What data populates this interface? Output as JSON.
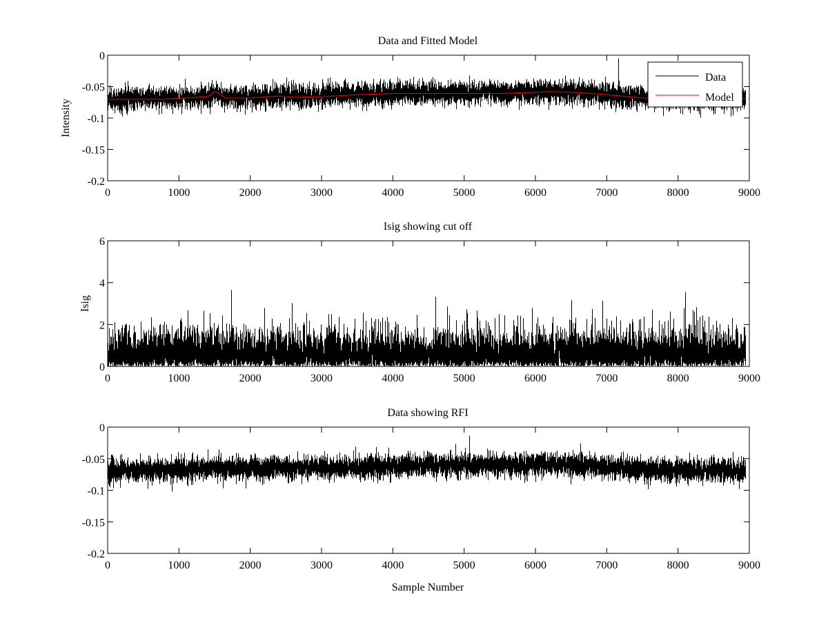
{
  "colors": {
    "data": "#000000",
    "model": "#ff0000",
    "background": "#ffffff"
  },
  "chart_data": [
    {
      "type": "line",
      "title": "Data and Fitted Model",
      "xlabel": "",
      "ylabel": "Intensity",
      "xlim": [
        0,
        9000
      ],
      "ylim": [
        -0.2,
        0
      ],
      "xticks": [
        0,
        1000,
        2000,
        3000,
        4000,
        5000,
        6000,
        7000,
        8000,
        9000
      ],
      "yticks": [
        0,
        -0.05,
        -0.1,
        -0.15,
        -0.2
      ],
      "ytick_labels": [
        "0",
        "-0.05",
        "-0.1",
        "-0.15",
        "-0.2"
      ],
      "grid": false,
      "legend": {
        "placement": "top-right",
        "entries": [
          "Data",
          "Model"
        ]
      },
      "series": [
        {
          "name": "Data",
          "color": "#000000",
          "kind": "noise",
          "n_samples": 8950,
          "baseline": [
            [
              0,
              -0.07
            ],
            [
              1400,
              -0.066
            ],
            [
              1520,
              -0.058
            ],
            [
              1600,
              -0.067
            ],
            [
              2400,
              -0.065
            ],
            [
              3000,
              -0.065
            ],
            [
              4000,
              -0.061
            ],
            [
              5000,
              -0.061
            ],
            [
              6200,
              -0.058
            ],
            [
              6800,
              -0.061
            ],
            [
              7500,
              -0.068
            ],
            [
              8950,
              -0.068
            ]
          ],
          "noise_sd": 0.009
        },
        {
          "name": "Model",
          "color": "#ff0000",
          "kind": "line",
          "x": [
            0,
            800,
            1400,
            1500,
            1550,
            1650,
            2000,
            2400,
            2600,
            3000,
            3500,
            4000,
            4500,
            5000,
            5500,
            6000,
            6200,
            6500,
            6800,
            7000,
            7500,
            8000,
            8950
          ],
          "y": [
            -0.07,
            -0.07,
            -0.066,
            -0.058,
            -0.06,
            -0.068,
            -0.068,
            -0.065,
            -0.067,
            -0.066,
            -0.063,
            -0.061,
            -0.061,
            -0.061,
            -0.061,
            -0.059,
            -0.058,
            -0.059,
            -0.061,
            -0.063,
            -0.068,
            -0.069,
            -0.069
          ]
        }
      ]
    },
    {
      "type": "line",
      "title": "Isig showing cut off",
      "xlabel": "",
      "ylabel": "Isig",
      "xlim": [
        0,
        9000
      ],
      "ylim": [
        0,
        6
      ],
      "xticks": [
        0,
        1000,
        2000,
        3000,
        4000,
        5000,
        6000,
        7000,
        8000,
        9000
      ],
      "yticks": [
        0,
        2,
        4,
        6
      ],
      "ytick_labels": [
        "0",
        "2",
        "4",
        "6"
      ],
      "grid": false,
      "series": [
        {
          "color": "#000000",
          "kind": "abs-noise",
          "n_samples": 8950,
          "scale": 0.8,
          "max": 4.0
        }
      ]
    },
    {
      "type": "line",
      "title": "Data showing RFI",
      "xlabel": "Sample Number",
      "ylabel": "",
      "xlim": [
        0,
        9000
      ],
      "ylim": [
        -0.2,
        0
      ],
      "xticks": [
        0,
        1000,
        2000,
        3000,
        4000,
        5000,
        6000,
        7000,
        8000,
        9000
      ],
      "yticks": [
        0,
        -0.05,
        -0.1,
        -0.15,
        -0.2
      ],
      "ytick_labels": [
        "0",
        "-0.05",
        "-0.1",
        "-0.15",
        "-0.2"
      ],
      "grid": false,
      "series": [
        {
          "color": "#000000",
          "kind": "noise",
          "n_samples": 8950,
          "baseline": [
            [
              0,
              -0.07
            ],
            [
              1400,
              -0.066
            ],
            [
              1520,
              -0.06
            ],
            [
              1600,
              -0.067
            ],
            [
              2400,
              -0.065
            ],
            [
              3000,
              -0.065
            ],
            [
              4000,
              -0.061
            ],
            [
              5000,
              -0.061
            ],
            [
              6200,
              -0.058
            ],
            [
              6800,
              -0.061
            ],
            [
              7500,
              -0.068
            ],
            [
              8950,
              -0.068
            ]
          ],
          "noise_sd": 0.009
        }
      ]
    }
  ]
}
